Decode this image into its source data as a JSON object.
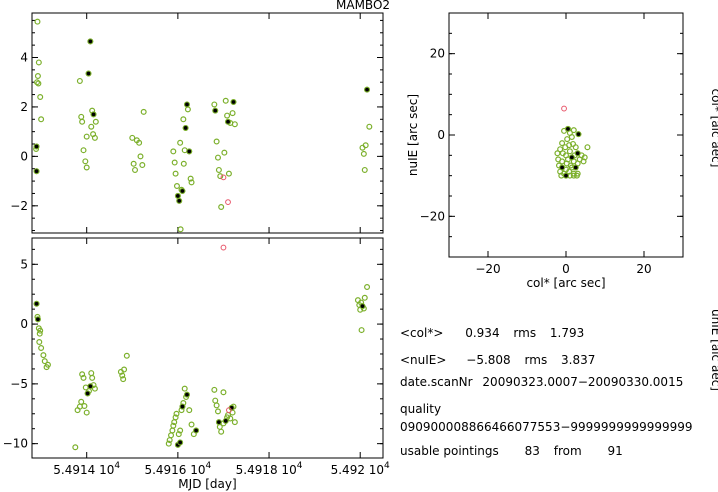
{
  "title": "MAMBO2",
  "colors": {
    "point": "#7cb02c",
    "outlier": "#e8566a",
    "highlight": "#000000"
  },
  "chart_data": [
    {
      "id": "top-left",
      "type": "scatter",
      "title": "",
      "xlabel": "",
      "ylabel": "",
      "xlim": [
        54912.8,
        54920.5
      ],
      "ylim": [
        -3.1,
        5.8
      ],
      "yticks": [
        {
          "v": -2,
          "label": "−2"
        },
        {
          "v": 0,
          "label": "0"
        },
        {
          "v": 2,
          "label": "2"
        },
        {
          "v": 4,
          "label": "4"
        }
      ],
      "points": [
        [
          54912.92,
          5.45
        ],
        [
          54912.95,
          3.8
        ],
        [
          54912.93,
          3.25
        ],
        [
          54912.91,
          3.0
        ],
        [
          54912.94,
          2.95
        ],
        [
          54912.98,
          2.4
        ],
        [
          54913.0,
          1.5
        ],
        [
          54912.9,
          0.4
        ],
        [
          54912.89,
          0.3
        ],
        [
          54912.9,
          -0.6
        ],
        [
          54913.85,
          3.05
        ],
        [
          54913.88,
          1.6
        ],
        [
          54913.9,
          1.4
        ],
        [
          54913.93,
          0.25
        ],
        [
          54913.97,
          -0.2
        ],
        [
          54914.0,
          -0.45
        ],
        [
          54914.04,
          3.35
        ],
        [
          54914.08,
          4.65
        ],
        [
          54914.12,
          1.85
        ],
        [
          54914.15,
          1.7
        ],
        [
          54914.1,
          1.2
        ],
        [
          54914.14,
          0.9
        ],
        [
          54914.18,
          0.75
        ],
        [
          54914.2,
          1.4
        ],
        [
          54914.0,
          0.8
        ],
        [
          54915.0,
          0.75
        ],
        [
          54915.03,
          -0.3
        ],
        [
          54915.06,
          -0.55
        ],
        [
          54915.1,
          0.65
        ],
        [
          54915.15,
          0.55
        ],
        [
          54915.18,
          0.0
        ],
        [
          54915.22,
          -0.35
        ],
        [
          54915.25,
          1.8
        ],
        [
          54915.9,
          0.2
        ],
        [
          54915.93,
          -0.25
        ],
        [
          54915.95,
          -0.7
        ],
        [
          54915.98,
          -1.2
        ],
        [
          54916.0,
          -1.6
        ],
        [
          54916.03,
          -1.8
        ],
        [
          54916.06,
          -2.95
        ],
        [
          54916.08,
          -1.35
        ],
        [
          54916.1,
          -1.4
        ],
        [
          54916.13,
          -0.3
        ],
        [
          54916.15,
          0.25
        ],
        [
          54916.17,
          1.15
        ],
        [
          54916.2,
          2.1
        ],
        [
          54916.22,
          1.9
        ],
        [
          54916.25,
          0.2
        ],
        [
          54916.28,
          -0.9
        ],
        [
          54916.3,
          -1.05
        ],
        [
          54916.05,
          0.55
        ],
        [
          54916.12,
          1.5
        ],
        [
          54916.8,
          2.1
        ],
        [
          54916.82,
          1.85
        ],
        [
          54916.85,
          0.6
        ],
        [
          54916.88,
          -0.05
        ],
        [
          54916.9,
          -0.55
        ],
        [
          54916.93,
          -0.8
        ],
        [
          54916.95,
          -2.05
        ],
        [
          54917.02,
          0.15
        ],
        [
          54917.08,
          1.65
        ],
        [
          54917.1,
          1.4
        ],
        [
          54917.15,
          1.35
        ],
        [
          54917.2,
          1.75
        ],
        [
          54917.22,
          2.2
        ],
        [
          54917.25,
          1.3
        ],
        [
          54917.05,
          2.25
        ],
        [
          54917.12,
          -0.7
        ],
        [
          54920.05,
          0.35
        ],
        [
          54920.08,
          0.1
        ],
        [
          54920.1,
          -0.55
        ],
        [
          54920.12,
          0.45
        ],
        [
          54920.15,
          2.7
        ],
        [
          54920.2,
          1.2
        ]
      ],
      "highlighted": [
        [
          54912.9,
          0.4
        ],
        [
          54912.9,
          -0.6
        ],
        [
          54914.04,
          3.35
        ],
        [
          54914.08,
          4.65
        ],
        [
          54914.15,
          1.7
        ],
        [
          54916.0,
          -1.6
        ],
        [
          54916.03,
          -1.8
        ],
        [
          54916.1,
          -1.4
        ],
        [
          54916.17,
          1.15
        ],
        [
          54916.2,
          2.1
        ],
        [
          54916.25,
          0.2
        ],
        [
          54917.1,
          1.4
        ],
        [
          54917.22,
          2.2
        ],
        [
          54916.82,
          1.85
        ],
        [
          54920.15,
          2.7
        ]
      ],
      "outliers": [
        [
          54917.0,
          -0.85
        ],
        [
          54917.1,
          -1.85
        ]
      ]
    },
    {
      "id": "bottom-left",
      "type": "scatter",
      "title": "",
      "xlabel": "MJD [day]",
      "ylabel": "",
      "xlim": [
        54912.8,
        54920.5
      ],
      "ylim": [
        -11.2,
        7.2
      ],
      "xticks": [
        {
          "v": 54914,
          "label": "5.4914 10",
          "exp": "4"
        },
        {
          "v": 54916,
          "label": "5.4916 10",
          "exp": "4"
        },
        {
          "v": 54918,
          "label": "5.4918 10",
          "exp": "4"
        },
        {
          "v": 54920,
          "label": "5.492 10",
          "exp": "4"
        }
      ],
      "yticks": [
        {
          "v": -10,
          "label": "−10"
        },
        {
          "v": -5,
          "label": "−5"
        },
        {
          "v": 0,
          "label": "0"
        },
        {
          "v": 5,
          "label": "5"
        }
      ],
      "points": [
        [
          54912.9,
          1.7
        ],
        [
          54912.92,
          0.6
        ],
        [
          54912.93,
          0.4
        ],
        [
          54912.95,
          -0.35
        ],
        [
          54912.97,
          -0.8
        ],
        [
          54912.96,
          -1.5
        ],
        [
          54913.0,
          -2.0
        ],
        [
          54913.05,
          -2.6
        ],
        [
          54913.08,
          -3.1
        ],
        [
          54913.12,
          -3.6
        ],
        [
          54913.15,
          -3.4
        ],
        [
          54912.98,
          -0.55
        ],
        [
          54913.75,
          -10.3
        ],
        [
          54913.8,
          -7.2
        ],
        [
          54913.85,
          -6.9
        ],
        [
          54913.88,
          -6.5
        ],
        [
          54913.9,
          -4.2
        ],
        [
          54913.93,
          -4.5
        ],
        [
          54913.95,
          -6.85
        ],
        [
          54913.98,
          -5.3
        ],
        [
          54914.0,
          -7.4
        ],
        [
          54914.02,
          -5.8
        ],
        [
          54914.05,
          -5.6
        ],
        [
          54914.08,
          -5.2
        ],
        [
          54914.1,
          -4.1
        ],
        [
          54914.12,
          -4.5
        ],
        [
          54914.15,
          -5.1
        ],
        [
          54914.18,
          -5.4
        ],
        [
          54914.75,
          -4.0
        ],
        [
          54914.78,
          -4.3
        ],
        [
          54914.8,
          -4.6
        ],
        [
          54914.82,
          -3.8
        ],
        [
          54914.88,
          -2.65
        ],
        [
          54915.8,
          -10.0
        ],
        [
          54915.82,
          -9.7
        ],
        [
          54915.85,
          -9.3
        ],
        [
          54915.88,
          -8.9
        ],
        [
          54915.9,
          -8.5
        ],
        [
          54915.92,
          -8.2
        ],
        [
          54915.95,
          -7.8
        ],
        [
          54915.97,
          -7.5
        ],
        [
          54916.0,
          -10.1
        ],
        [
          54916.02,
          -9.2
        ],
        [
          54916.05,
          -8.9
        ],
        [
          54916.08,
          -7.2
        ],
        [
          54916.1,
          -6.9
        ],
        [
          54916.12,
          -6.6
        ],
        [
          54916.15,
          -5.4
        ],
        [
          54916.18,
          -6.1
        ],
        [
          54916.2,
          -5.9
        ],
        [
          54916.25,
          -7.2
        ],
        [
          54916.3,
          -8.4
        ],
        [
          54916.35,
          -9.2
        ],
        [
          54916.4,
          -8.9
        ],
        [
          54916.05,
          -9.9
        ],
        [
          54916.8,
          -5.5
        ],
        [
          54916.82,
          -6.4
        ],
        [
          54916.85,
          -6.8
        ],
        [
          54916.88,
          -7.3
        ],
        [
          54916.9,
          -8.2
        ],
        [
          54916.92,
          -8.6
        ],
        [
          54916.95,
          -9.0
        ],
        [
          54917.0,
          -8.3
        ],
        [
          54917.05,
          -8.1
        ],
        [
          54917.08,
          -7.8
        ],
        [
          54917.1,
          -7.6
        ],
        [
          54917.15,
          -7.9
        ],
        [
          54917.18,
          -7.0
        ],
        [
          54917.2,
          -7.4
        ],
        [
          54917.22,
          -6.9
        ],
        [
          54917.25,
          -8.2
        ],
        [
          54917.0,
          -5.7
        ],
        [
          54919.95,
          2.0
        ],
        [
          54919.98,
          1.6
        ],
        [
          54920.0,
          1.2
        ],
        [
          54920.02,
          1.8
        ],
        [
          54920.05,
          1.5
        ],
        [
          54920.08,
          1.3
        ],
        [
          54920.1,
          2.2
        ],
        [
          54920.15,
          3.1
        ],
        [
          54920.03,
          -0.5
        ]
      ],
      "highlighted": [
        [
          54912.9,
          1.7
        ],
        [
          54912.93,
          0.4
        ],
        [
          54914.02,
          -5.8
        ],
        [
          54914.08,
          -5.2
        ],
        [
          54916.0,
          -10.1
        ],
        [
          54916.05,
          -9.9
        ],
        [
          54916.1,
          -6.9
        ],
        [
          54916.2,
          -5.9
        ],
        [
          54916.4,
          -8.9
        ],
        [
          54917.05,
          -8.1
        ],
        [
          54917.18,
          -7.0
        ],
        [
          54916.9,
          -8.2
        ],
        [
          54920.05,
          1.5
        ]
      ],
      "outliers": [
        [
          54917.0,
          6.4
        ],
        [
          54917.12,
          -7.2
        ]
      ]
    },
    {
      "id": "right",
      "type": "scatter",
      "title": "",
      "xlabel": "col* [arc sec]",
      "ylabel": "nuIE [arc sec]",
      "right_label": "col* [alc aec]",
      "xlim": [
        -30,
        30
      ],
      "ylim": [
        -30,
        30
      ],
      "xticks": [
        {
          "v": -20,
          "label": "−20"
        },
        {
          "v": 0,
          "label": "0"
        },
        {
          "v": 20,
          "label": "20"
        }
      ],
      "yticks": [
        {
          "v": -20,
          "label": "−20"
        },
        {
          "v": 0,
          "label": "0"
        },
        {
          "v": 20,
          "label": "20"
        }
      ],
      "points": [
        [
          -0.5,
          1.0
        ],
        [
          0.5,
          1.5
        ],
        [
          1.0,
          0.5
        ],
        [
          1.5,
          -0.5
        ],
        [
          2.0,
          1.2
        ],
        [
          -1.0,
          -2.0
        ],
        [
          -1.5,
          -3.5
        ],
        [
          -0.8,
          -4.5
        ],
        [
          0.0,
          -5.0
        ],
        [
          0.5,
          -6.0
        ],
        [
          1.0,
          -4.0
        ],
        [
          1.5,
          -5.5
        ],
        [
          2.0,
          -6.5
        ],
        [
          2.5,
          -3.0
        ],
        [
          3.0,
          -4.5
        ],
        [
          3.5,
          -6.0
        ],
        [
          4.0,
          -5.0
        ],
        [
          -2.0,
          -6.0
        ],
        [
          -1.8,
          -7.5
        ],
        [
          -1.0,
          -8.0
        ],
        [
          0.0,
          -8.5
        ],
        [
          0.8,
          -9.0
        ],
        [
          1.5,
          -8.0
        ],
        [
          2.0,
          -9.5
        ],
        [
          2.5,
          -8.0
        ],
        [
          3.0,
          -7.0
        ],
        [
          -0.5,
          -9.5
        ],
        [
          -1.5,
          -9.0
        ],
        [
          0.0,
          -10.0
        ],
        [
          1.0,
          -10.0
        ],
        [
          2.0,
          -10.0
        ],
        [
          3.0,
          -9.5
        ],
        [
          -1.0,
          -6.5
        ],
        [
          0.2,
          -7.0
        ],
        [
          1.2,
          -7.5
        ],
        [
          2.2,
          -5.0
        ],
        [
          -0.2,
          -3.0
        ],
        [
          0.8,
          -2.5
        ],
        [
          4.5,
          -6.5
        ],
        [
          5.5,
          -3.0
        ],
        [
          3.2,
          0.2
        ],
        [
          -2.2,
          -4.5
        ],
        [
          0.3,
          -1.0
        ],
        [
          1.8,
          -2.2
        ],
        [
          4.8,
          -5.5
        ],
        [
          -1.2,
          -10.0
        ],
        [
          2.8,
          -10.0
        ]
      ],
      "highlighted": [
        [
          0.5,
          1.5
        ],
        [
          1.5,
          -5.5
        ],
        [
          3.0,
          -4.5
        ],
        [
          -1.0,
          -8.0
        ],
        [
          2.5,
          -8.0
        ],
        [
          0.0,
          -10.0
        ],
        [
          3.2,
          0.2
        ]
      ],
      "outliers": [
        [
          -0.5,
          6.5
        ]
      ]
    }
  ],
  "right_edge_labels": {
    "mid": "col* [alc aec]",
    "low": "unIE [alc aec]"
  },
  "info": {
    "col_mean_label": "<col*>",
    "col_mean": "0.934",
    "col_rms_label": "rms",
    "col_rms": "1.793",
    "nuie_mean_label": "<nuIE>",
    "nuie_mean": "−5.808",
    "nuie_rms_label": "rms",
    "nuie_rms": "3.837",
    "date_label": "date.scanNr",
    "date_value": "20090323.0007−20090330.0015",
    "quality_label": "quality",
    "quality_value": "090900008866466077553−9999999999999999",
    "pointings_label": "usable pointings",
    "pointings_used": "83",
    "pointings_from_label": "from",
    "pointings_total": "91"
  }
}
